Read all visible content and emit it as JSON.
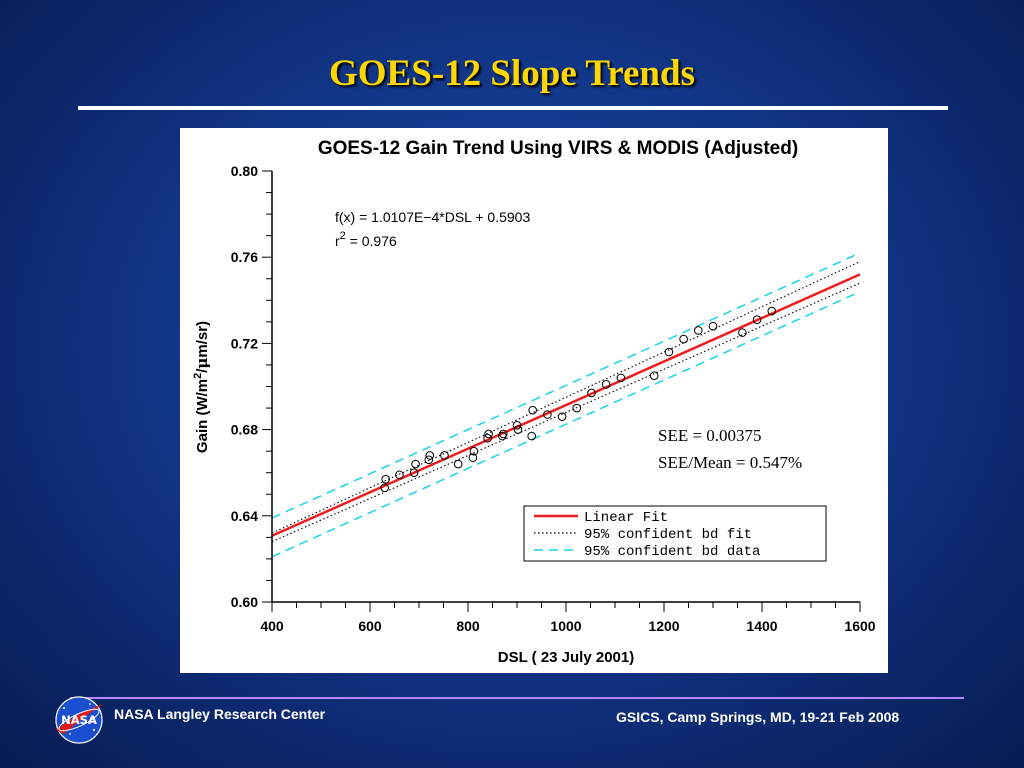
{
  "slide": {
    "title": "GOES-12 Slope Trends",
    "footer_left": "NASA Langley Research Center",
    "footer_right": "GSICS, Camp Springs, MD, 19-21 Feb 2008",
    "logo_text": "NASA",
    "colors": {
      "title": "#ffd700",
      "footer_rule": "#b388ff"
    }
  },
  "chart_data": {
    "type": "scatter",
    "title": "GOES-12 Gain Trend Using VIRS & MODIS (Adjusted)",
    "xlabel": "DSL ( 23 July 2001)",
    "ylabel_parts": [
      "Gain (W/m",
      "2",
      "/",
      "μ",
      "m/sr)"
    ],
    "xlim": [
      400,
      1600
    ],
    "ylim": [
      0.6,
      0.8
    ],
    "xticks": [
      400,
      600,
      800,
      1000,
      1200,
      1400,
      1600
    ],
    "yticks": [
      0.6,
      0.64,
      0.68,
      0.72,
      0.76,
      0.8
    ],
    "ytick_labels": [
      "0.60",
      "0.64",
      "0.68",
      "0.72",
      "0.76",
      "0.80"
    ],
    "equation": "f(x) = 1.0107E−4*DSL + 0.5903",
    "r2_prefix": "r",
    "r2_sup": "2",
    "r2_value": " = 0.976",
    "annotations": [
      "SEE = 0.00375",
      "SEE/Mean = 0.547%"
    ],
    "legend": {
      "placement": "bottom-right",
      "entries": [
        {
          "label": "Linear Fit",
          "style": "solid",
          "color": "#ee1c1c"
        },
        {
          "label": "95% confident bd fit",
          "style": "dotted",
          "color": "#000000"
        },
        {
          "label": "95% confident bd data",
          "style": "dashed",
          "color": "#19d3e8"
        }
      ]
    },
    "fit": {
      "slope": 0.00010107,
      "intercept": 0.5903,
      "color": "#ee1c1c"
    },
    "fit_band": {
      "low": [
        0.628,
        0.748
      ],
      "high": [
        0.632,
        0.758
      ]
    },
    "data_band": {
      "low": [
        0.621,
        0.744
      ],
      "high": [
        0.639,
        0.762
      ]
    },
    "points": [
      [
        630,
        0.653
      ],
      [
        632,
        0.657
      ],
      [
        660,
        0.659
      ],
      [
        690,
        0.66
      ],
      [
        693,
        0.664
      ],
      [
        720,
        0.666
      ],
      [
        722,
        0.668
      ],
      [
        752,
        0.668
      ],
      [
        780,
        0.664
      ],
      [
        810,
        0.667
      ],
      [
        812,
        0.67
      ],
      [
        840,
        0.676
      ],
      [
        842,
        0.678
      ],
      [
        870,
        0.677
      ],
      [
        872,
        0.678
      ],
      [
        900,
        0.682
      ],
      [
        902,
        0.68
      ],
      [
        930,
        0.677
      ],
      [
        932,
        0.689
      ],
      [
        962,
        0.687
      ],
      [
        992,
        0.686
      ],
      [
        1022,
        0.69
      ],
      [
        1052,
        0.697
      ],
      [
        1082,
        0.701
      ],
      [
        1112,
        0.704
      ],
      [
        1180,
        0.705
      ],
      [
        1210,
        0.716
      ],
      [
        1240,
        0.722
      ],
      [
        1270,
        0.726
      ],
      [
        1300,
        0.728
      ],
      [
        1360,
        0.725
      ],
      [
        1390,
        0.731
      ],
      [
        1420,
        0.735
      ]
    ]
  }
}
